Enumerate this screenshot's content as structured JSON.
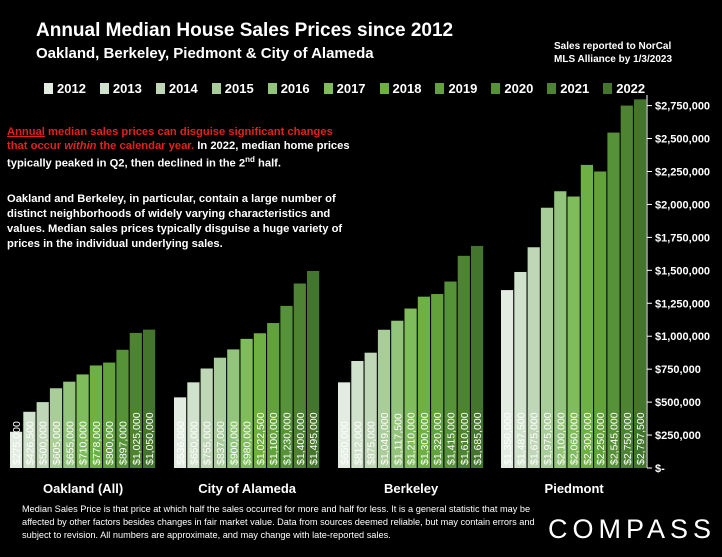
{
  "header": {
    "title": "Annual Median House Sales Prices since 2012",
    "subtitle": "Oakland, Berkeley, Piedmont & City of Alameda",
    "source": "Sales reported to NorCal\nMLS Alliance by 1/3/2023"
  },
  "notes": {
    "red_prefix": "Annual",
    "red_mid": " median sales prices can disguise significant changes that occur ",
    "red_italic": "within",
    "red_suffix": " the calendar year.",
    "white_text": " In 2022, median home prices typically peaked in Q2, then declined in the 2",
    "white_sup": "nd",
    "white_end": " half.",
    "paragraph2": "Oakland and Berkeley, in particular, contain a large number of distinct neighborhoods of widely varying characteristics and values. Median sales prices typically disguise a huge variety of prices in the individual underlying sales."
  },
  "footer": {
    "text": "Median Sales Price is that price at which half the sales occurred for more and half for less. It is a general statistic that may be affected by other factors besides changes in fair market value. Data from sources deemed reliable, but may contain errors and subject to revision.  All numbers are approximate, and may change with late-reported sales.",
    "logo": "COMPASS"
  },
  "colors": {
    "background": "#000000",
    "series": [
      "#e2ece0",
      "#d0e2cb",
      "#bfd7b6",
      "#a9cc9b",
      "#93c47b",
      "#7fbd5c",
      "#6eb043",
      "#61a23c",
      "#569237",
      "#4d8332",
      "#44752c"
    ]
  },
  "chart_data": {
    "type": "bar",
    "title": "Annual Median House Sales Prices since 2012",
    "legend_position": "top",
    "grid": false,
    "ylim": [
      0,
      2800000
    ],
    "y_ticks": [
      {
        "value": 0,
        "label": "$-"
      },
      {
        "value": 250000,
        "label": "$250,000"
      },
      {
        "value": 500000,
        "label": "$500,000"
      },
      {
        "value": 750000,
        "label": "$750,000"
      },
      {
        "value": 1000000,
        "label": "$1,000,000"
      },
      {
        "value": 1250000,
        "label": "$1,250,000"
      },
      {
        "value": 1500000,
        "label": "$1,500,000"
      },
      {
        "value": 1750000,
        "label": "$1,750,000"
      },
      {
        "value": 2000000,
        "label": "$2,000,000"
      },
      {
        "value": 2250000,
        "label": "$2,250,000"
      },
      {
        "value": 2500000,
        "label": "$2,500,000"
      },
      {
        "value": 2750000,
        "label": "$2,750,000"
      }
    ],
    "categories": [
      "Oakland (All)",
      "City of Alameda",
      "Berkeley",
      "Piedmont"
    ],
    "years": [
      "2012",
      "2013",
      "2014",
      "2015",
      "2016",
      "2017",
      "2018",
      "2019",
      "2020",
      "2021",
      "2022"
    ],
    "values": [
      [
        275000,
        426500,
        500000,
        605000,
        655000,
        710000,
        778000,
        800000,
        897000,
        1025000,
        1050000
      ],
      [
        536000,
        650000,
        755000,
        837000,
        900000,
        980000,
        1022500,
        1100000,
        1230000,
        1400000,
        1495000
      ],
      [
        650000,
        812000,
        875000,
        1049000,
        1117500,
        1210000,
        1300000,
        1320000,
        1415000,
        1610000,
        1685000
      ],
      [
        1350000,
        1487500,
        1675000,
        1975000,
        2100000,
        2060000,
        2300000,
        2250000,
        2545000,
        2750000,
        2797500
      ]
    ],
    "value_labels": [
      [
        "$275,000",
        "$426,500",
        "$500,000",
        "$605,000",
        "$655,000",
        "$710,000",
        "$778,000",
        "$800,000",
        "$897,000",
        "$1,025,000",
        "$1,050,000"
      ],
      [
        "$536,000",
        "$650,000",
        "$755,000",
        "$837,000",
        "$900,000",
        "$980,000",
        "$1,022,500",
        "$1,100,000",
        "$1,230,000",
        "$1,400,000",
        "$1,495,000"
      ],
      [
        "$650,000",
        "$812,000",
        "$875,000",
        "$1,049,000",
        "$1,117,500",
        "$1,210,000",
        "$1,300,000",
        "$1,320,000",
        "$1,415,000",
        "$1,610,000",
        "$1,685,000"
      ],
      [
        "$1,350,000",
        "$1,487,500",
        "$1,675,000",
        "$1,975,000",
        "$2,100,000",
        "$2,060,000",
        "$2,300,000",
        "$2,250,000",
        "$2,545,000",
        "$2,750,000",
        "$2,797,500"
      ]
    ]
  }
}
